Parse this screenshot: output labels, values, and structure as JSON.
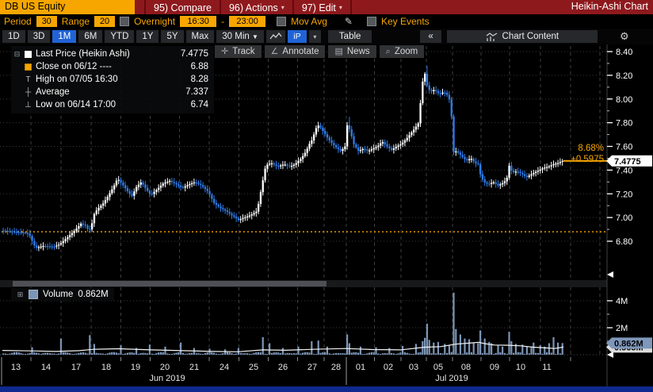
{
  "title_bar": {
    "ticker": "DB US Equity",
    "buttons": [
      {
        "id": "compare",
        "label": "95) Compare",
        "caret": false
      },
      {
        "id": "actions",
        "label": "96) Actions",
        "caret": true
      },
      {
        "id": "edit",
        "label": "97) Edit",
        "caret": true
      }
    ],
    "chart_type": "Heikin-Ashi Chart"
  },
  "settings_bar": {
    "period_label": "Period",
    "period_value": "30",
    "range_label": "Range",
    "range_value": "20",
    "overnight_label": "Overnight",
    "session_start": "16:30",
    "dash": "-",
    "session_end": "23:00",
    "mov_avg_label": "Mov Avg",
    "key_events_label": "Key Events"
  },
  "toolbar": {
    "ranges": [
      "1D",
      "3D",
      "1M",
      "6M",
      "YTD",
      "1Y",
      "5Y",
      "Max"
    ],
    "selected_range": "1M",
    "interval": "30 Min",
    "chart_style_button": "iP",
    "table_label": "Table",
    "collapse_label": "«",
    "chart_content_label": "Chart Content",
    "gear_icon": "⚙"
  },
  "chart_buttons": [
    {
      "icon": "crosshair-icon",
      "label": "Track"
    },
    {
      "icon": "annotate-icon",
      "label": "Annotate"
    },
    {
      "icon": "news-icon",
      "label": "News"
    },
    {
      "icon": "magnifier-icon",
      "label": "Zoom"
    }
  ],
  "legend": {
    "rows": [
      {
        "swatch": "white-square",
        "label": "Last Price (Heikin Ashi)",
        "value": "7.4775"
      },
      {
        "swatch": "orange-square",
        "label": "Close on 06/12 ----",
        "value": "6.88"
      },
      {
        "swatch": "high-tee",
        "label": "High on 07/05 16:30",
        "value": "8.28"
      },
      {
        "swatch": "avg-cross",
        "label": "Average",
        "value": "7.337"
      },
      {
        "swatch": "low-tee",
        "label": "Low on 06/14 17:00",
        "value": "6.74"
      }
    ]
  },
  "volume_legend": {
    "label": "Volume",
    "value": "0.862M"
  },
  "annotations": {
    "pct_change": "8.68%",
    "net_change": "+0.5975",
    "last_price_tag": "7.4775",
    "volume_tag": "0.862M",
    "volume_avg_tag": "0.565M"
  },
  "colors": {
    "up_candle": "#ffffff",
    "down_candle": "#2f7cea",
    "volume_bar": "#7c95b6",
    "accent": "#f7a600",
    "grid": "#3c3f42",
    "axis_text": "#ffffff",
    "date_text": "#e6e6e6",
    "selected_blue": "#2063d6",
    "title_red": "#8e191d",
    "badge_volume": "#7e97ba",
    "bottom_strip": "#10298f"
  },
  "date_axis": {
    "days": [
      [
        "13",
        20
      ],
      [
        "14",
        58
      ],
      [
        "17",
        96
      ],
      [
        "18",
        134
      ],
      [
        "19",
        171
      ],
      [
        "20",
        208
      ],
      [
        "21",
        245
      ],
      [
        "24",
        283
      ],
      [
        "25",
        320
      ],
      [
        "26",
        357
      ],
      [
        "27",
        394
      ],
      [
        "28",
        424
      ],
      [
        "01",
        455
      ],
      [
        "02",
        490
      ],
      [
        "03",
        522
      ],
      [
        "05",
        553
      ],
      [
        "08",
        588
      ],
      [
        "09",
        624
      ],
      [
        "10",
        657
      ],
      [
        "11",
        690
      ]
    ],
    "months": [
      [
        "Jun 2019",
        211
      ],
      [
        "Jul 2019",
        570
      ]
    ],
    "boundaries": [
      39,
      77,
      115,
      152.5,
      189.5,
      226.5,
      264,
      301.5,
      338.5,
      375.5,
      409,
      437,
      472.5,
      506,
      538,
      571,
      607,
      643,
      682,
      720,
      757
    ],
    "month_separator_x": 437
  },
  "chart_data": [
    {
      "type": "candlestick",
      "subtype": "heikin-ashi",
      "title": "DB US Equity 30 Min Heikin-Ashi",
      "interval": "30 Min",
      "ylim": [
        6.45,
        8.44
      ],
      "yticks": [
        "8.40",
        "8.20",
        "8.00",
        "7.80",
        "7.60",
        "7.40",
        "7.20",
        "7.00",
        "6.80"
      ],
      "last_price": 7.4775,
      "prev_close_date": "06/12",
      "prev_close": 6.88,
      "high_date": "07/05 16:30",
      "high": 8.28,
      "average": 7.337,
      "low_date": "06/14 17:00",
      "low": 6.74,
      "pct_change": "8.68%",
      "net_change": "+0.5975",
      "price_path": [
        [
          3,
          6.89
        ],
        [
          20,
          6.88
        ],
        [
          36,
          6.87
        ],
        [
          40,
          6.84
        ],
        [
          44,
          6.77
        ],
        [
          48,
          6.745
        ],
        [
          56,
          6.76
        ],
        [
          70,
          6.755
        ],
        [
          77,
          6.775
        ],
        [
          88,
          6.84
        ],
        [
          96,
          6.89
        ],
        [
          104,
          6.95
        ],
        [
          110,
          6.93
        ],
        [
          114,
          6.885
        ],
        [
          117,
          6.93
        ],
        [
          121,
          7.04
        ],
        [
          126,
          7.08
        ],
        [
          132,
          7.12
        ],
        [
          138,
          7.18
        ],
        [
          145,
          7.26
        ],
        [
          150,
          7.33
        ],
        [
          156,
          7.28
        ],
        [
          163,
          7.22
        ],
        [
          168,
          7.18
        ],
        [
          174,
          7.26
        ],
        [
          180,
          7.3
        ],
        [
          186,
          7.24
        ],
        [
          192,
          7.19
        ],
        [
          200,
          7.24
        ],
        [
          208,
          7.29
        ],
        [
          216,
          7.31
        ],
        [
          224,
          7.28
        ],
        [
          232,
          7.25
        ],
        [
          240,
          7.28
        ],
        [
          248,
          7.3
        ],
        [
          256,
          7.27
        ],
        [
          264,
          7.22
        ],
        [
          272,
          7.12
        ],
        [
          280,
          7.08
        ],
        [
          288,
          7.05
        ],
        [
          296,
          7.01
        ],
        [
          303,
          6.98
        ],
        [
          310,
          7.0
        ],
        [
          318,
          7.02
        ],
        [
          325,
          7.05
        ],
        [
          328,
          7.12
        ],
        [
          333,
          7.3
        ],
        [
          337,
          7.44
        ],
        [
          344,
          7.46
        ],
        [
          352,
          7.43
        ],
        [
          360,
          7.45
        ],
        [
          368,
          7.43
        ],
        [
          374,
          7.45
        ],
        [
          382,
          7.5
        ],
        [
          388,
          7.56
        ],
        [
          392,
          7.62
        ],
        [
          396,
          7.66
        ],
        [
          400,
          7.75
        ],
        [
          404,
          7.78
        ],
        [
          408,
          7.74
        ],
        [
          414,
          7.68
        ],
        [
          420,
          7.63
        ],
        [
          426,
          7.59
        ],
        [
          432,
          7.56
        ],
        [
          437,
          7.6
        ],
        [
          440,
          7.79
        ],
        [
          444,
          7.72
        ],
        [
          448,
          7.62
        ],
        [
          454,
          7.56
        ],
        [
          460,
          7.58
        ],
        [
          466,
          7.56
        ],
        [
          472,
          7.58
        ],
        [
          478,
          7.6
        ],
        [
          484,
          7.64
        ],
        [
          490,
          7.6
        ],
        [
          496,
          7.57
        ],
        [
          502,
          7.6
        ],
        [
          508,
          7.62
        ],
        [
          514,
          7.66
        ],
        [
          520,
          7.71
        ],
        [
          526,
          7.76
        ],
        [
          530,
          7.8
        ],
        [
          534,
          8.1
        ],
        [
          537,
          8.24
        ],
        [
          541,
          8.1
        ],
        [
          545,
          8.06
        ],
        [
          550,
          8.08
        ],
        [
          556,
          8.04
        ],
        [
          562,
          8.06
        ],
        [
          568,
          8.02
        ],
        [
          571,
          7.9
        ],
        [
          574,
          7.55
        ],
        [
          578,
          7.56
        ],
        [
          584,
          7.52
        ],
        [
          590,
          7.48
        ],
        [
          596,
          7.5
        ],
        [
          601,
          7.46
        ],
        [
          605,
          7.45
        ],
        [
          608,
          7.36
        ],
        [
          612,
          7.3
        ],
        [
          618,
          7.28
        ],
        [
          624,
          7.3
        ],
        [
          630,
          7.27
        ],
        [
          636,
          7.29
        ],
        [
          641,
          7.32
        ],
        [
          644,
          7.44
        ],
        [
          648,
          7.38
        ],
        [
          654,
          7.39
        ],
        [
          660,
          7.37
        ],
        [
          666,
          7.34
        ],
        [
          671,
          7.36
        ],
        [
          676,
          7.38
        ],
        [
          682,
          7.4
        ],
        [
          688,
          7.42
        ],
        [
          694,
          7.43
        ],
        [
          700,
          7.45
        ],
        [
          706,
          7.46
        ],
        [
          711,
          7.4775
        ]
      ],
      "special_wicks": [
        {
          "x": 44,
          "low": 6.74
        },
        {
          "x": 440,
          "high": 7.85
        },
        {
          "x": 537,
          "high": 8.28
        },
        {
          "x": 644,
          "high": 7.47
        }
      ]
    },
    {
      "type": "bar",
      "title": "Volume",
      "ylim": [
        0,
        5.2
      ],
      "yticks": [
        {
          "label": "4M",
          "v": 4
        },
        {
          "label": "2M",
          "v": 2
        }
      ],
      "minor_ticks": [
        1,
        3
      ],
      "last": 0.862,
      "avg_last": 0.565,
      "spikes": [
        [
          40,
          0.55
        ],
        [
          75,
          1.2
        ],
        [
          113,
          1.45
        ],
        [
          118,
          0.8
        ],
        [
          151,
          0.7
        ],
        [
          170,
          0.5
        ],
        [
          188,
          0.75
        ],
        [
          208,
          0.6
        ],
        [
          226,
          0.9
        ],
        [
          245,
          0.5
        ],
        [
          264,
          0.45
        ],
        [
          283,
          0.4
        ],
        [
          301,
          0.5
        ],
        [
          330,
          1.3
        ],
        [
          338,
          0.85
        ],
        [
          356,
          0.5
        ],
        [
          375,
          0.6
        ],
        [
          392,
          1.0
        ],
        [
          400,
          1.05
        ],
        [
          412,
          0.6
        ],
        [
          437,
          1.5
        ],
        [
          441,
          0.85
        ],
        [
          455,
          0.6
        ],
        [
          473,
          0.55
        ],
        [
          490,
          0.5
        ],
        [
          506,
          0.65
        ],
        [
          524,
          0.8
        ],
        [
          531,
          1.0
        ],
        [
          535,
          1.25
        ],
        [
          537,
          2.3
        ],
        [
          541,
          1.1
        ],
        [
          547,
          0.9
        ],
        [
          553,
          0.95
        ],
        [
          560,
          0.8
        ],
        [
          566,
          0.7
        ],
        [
          571,
          4.6
        ],
        [
          575,
          1.9
        ],
        [
          579,
          1.5
        ],
        [
          584,
          1.2
        ],
        [
          590,
          1.15
        ],
        [
          596,
          0.9
        ],
        [
          601,
          0.85
        ],
        [
          606,
          1.8
        ],
        [
          610,
          1.2
        ],
        [
          615,
          0.95
        ],
        [
          620,
          0.85
        ],
        [
          626,
          0.7
        ],
        [
          632,
          0.6
        ],
        [
          641,
          1.7
        ],
        [
          645,
          1.0
        ],
        [
          650,
          0.8
        ],
        [
          657,
          0.75
        ],
        [
          663,
          0.6
        ],
        [
          668,
          0.55
        ],
        [
          673,
          0.9
        ],
        [
          680,
          0.7
        ],
        [
          686,
          0.6
        ],
        [
          692,
          0.85
        ],
        [
          698,
          1.3
        ],
        [
          703,
          0.9
        ],
        [
          708,
          0.862
        ]
      ],
      "avg_line": [
        [
          3,
          0.32
        ],
        [
          40,
          0.28
        ],
        [
          70,
          0.24
        ],
        [
          100,
          0.3
        ],
        [
          118,
          0.4
        ],
        [
          150,
          0.44
        ],
        [
          190,
          0.36
        ],
        [
          230,
          0.3
        ],
        [
          270,
          0.24
        ],
        [
          300,
          0.22
        ],
        [
          332,
          0.36
        ],
        [
          360,
          0.33
        ],
        [
          395,
          0.4
        ],
        [
          437,
          0.46
        ],
        [
          470,
          0.38
        ],
        [
          506,
          0.36
        ],
        [
          535,
          0.55
        ],
        [
          556,
          0.6
        ],
        [
          575,
          0.78
        ],
        [
          592,
          0.86
        ],
        [
          604,
          0.92
        ],
        [
          612,
          0.82
        ],
        [
          624,
          0.72
        ],
        [
          641,
          0.7
        ],
        [
          657,
          0.66
        ],
        [
          673,
          0.56
        ],
        [
          690,
          0.5
        ],
        [
          700,
          0.46
        ],
        [
          711,
          0.565
        ]
      ]
    }
  ]
}
